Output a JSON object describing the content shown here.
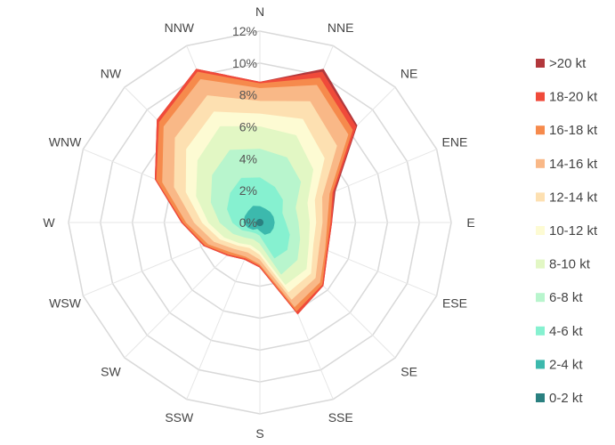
{
  "chart_data": {
    "type": "wind-rose",
    "title": "",
    "directions": [
      "N",
      "NNE",
      "NE",
      "ENE",
      "E",
      "ESE",
      "SE",
      "SSE",
      "S",
      "SSW",
      "SW",
      "WSW",
      "W",
      "WNW",
      "NW",
      "NNW"
    ],
    "radial_ticks": [
      "0%",
      "2%",
      "4%",
      "6%",
      "8%",
      "10%",
      "12%"
    ],
    "radial_range": [
      0,
      12
    ],
    "grid": true,
    "legend_position": "right",
    "series": [
      {
        "name": ">20 kt",
        "color": "#b2383c",
        "values": [
          8.8,
          10.4,
          8.6,
          5.1,
          4.5,
          4.6,
          5.6,
          6.2,
          2.8,
          2.5,
          2.9,
          3.8,
          4.9,
          7.1,
          9.1,
          10.4
        ]
      },
      {
        "name": "18-20 kt",
        "color": "#f04a3a",
        "values": [
          8.8,
          10.2,
          8.5,
          5.0,
          4.5,
          4.6,
          5.6,
          6.2,
          2.8,
          2.5,
          2.9,
          3.8,
          4.9,
          7.1,
          9.1,
          10.4
        ]
      },
      {
        "name": "16-18 kt",
        "color": "#f68a4c",
        "values": [
          8.7,
          9.8,
          8.2,
          4.9,
          4.4,
          4.5,
          5.5,
          6.0,
          2.7,
          2.4,
          2.8,
          3.7,
          4.8,
          7.0,
          8.9,
          10.2
        ]
      },
      {
        "name": "14-16 kt",
        "color": "#f9b887",
        "values": [
          8.4,
          9.3,
          7.8,
          4.7,
          4.2,
          4.4,
          5.3,
          5.7,
          2.6,
          2.3,
          2.6,
          3.5,
          4.6,
          6.6,
          8.5,
          9.7
        ]
      },
      {
        "name": "12-14 kt",
        "color": "#fde0b1",
        "values": [
          7.6,
          8.2,
          6.8,
          4.2,
          3.9,
          4.0,
          4.9,
          5.2,
          2.3,
          2.0,
          2.3,
          3.1,
          4.1,
          5.8,
          7.5,
          8.6
        ]
      },
      {
        "name": "10-12 kt",
        "color": "#fdfbd3",
        "values": [
          6.8,
          7.0,
          5.7,
          3.7,
          3.5,
          3.6,
          4.5,
          4.7,
          2.0,
          1.7,
          2.0,
          2.7,
          3.6,
          5.0,
          6.5,
          7.5
        ]
      },
      {
        "name": "8-10 kt",
        "color": "#e2f7c4",
        "values": [
          6.0,
          5.9,
          4.7,
          3.2,
          3.1,
          3.3,
          4.1,
          4.2,
          1.8,
          1.5,
          1.8,
          2.4,
          3.2,
          4.3,
          5.5,
          6.5
        ]
      },
      {
        "name": "6-8 kt",
        "color": "#b8f5cd",
        "values": [
          4.6,
          4.4,
          3.6,
          2.4,
          2.4,
          2.7,
          3.3,
          3.5,
          1.3,
          1.1,
          1.3,
          1.8,
          2.5,
          3.3,
          4.2,
          4.9
        ]
      },
      {
        "name": "4-6 kt",
        "color": "#86f1d0",
        "values": [
          2.8,
          2.4,
          2.0,
          1.5,
          1.6,
          2.0,
          2.4,
          2.4,
          0.8,
          0.7,
          0.8,
          1.2,
          1.7,
          2.2,
          2.6,
          3.0
        ]
      },
      {
        "name": "2-4 kt",
        "color": "#3cb9ad",
        "values": [
          1.0,
          0.9,
          0.9,
          0.9,
          0.9,
          0.9,
          0.9,
          0.8,
          0.5,
          0.4,
          0.6,
          0.8,
          1.0,
          1.0,
          1.0,
          1.1
        ]
      },
      {
        "name": "0-2 kt",
        "color": "#2a8080",
        "values": [
          0.2,
          0.2,
          0.2,
          0.2,
          0.2,
          0.2,
          0.2,
          0.2,
          0.2,
          0.2,
          0.2,
          0.2,
          0.2,
          0.2,
          0.2,
          0.2
        ]
      }
    ]
  }
}
